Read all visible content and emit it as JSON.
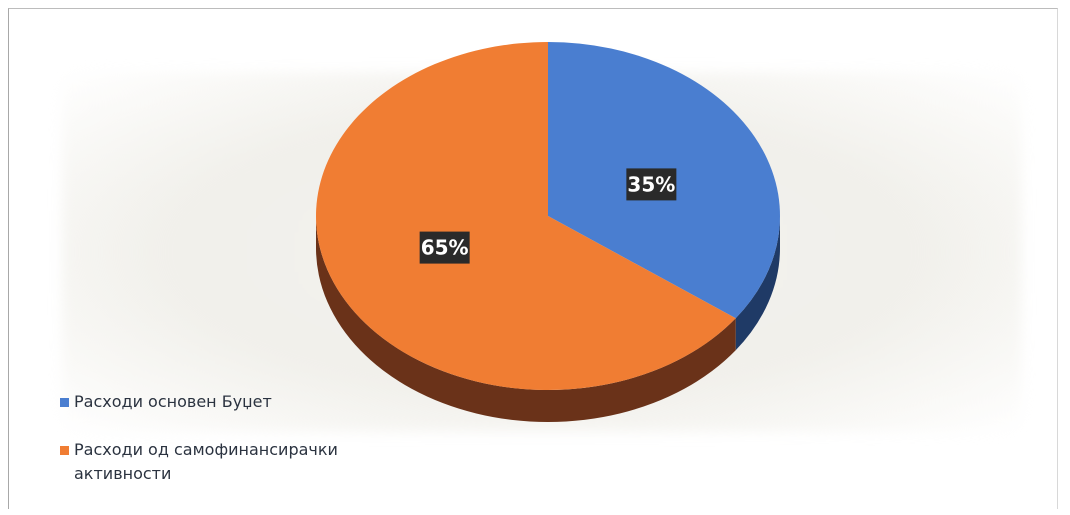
{
  "chart_data": {
    "type": "pie",
    "style": "3d",
    "slices": [
      {
        "label": "Расходи основен Буџет",
        "value": 35,
        "value_label": "35%",
        "color": "#4a7ed0"
      },
      {
        "label": "Расходи од самофинансирачки активности",
        "value": 65,
        "value_label": "65%",
        "color": "#f07d33"
      }
    ],
    "legend_position": "bottom-left"
  },
  "legend": {
    "items": [
      {
        "label": "Расходи основен Буџет",
        "color": "#4a7ed0"
      },
      {
        "label": "Расходи од самофинансирачки активности",
        "color": "#f07d33"
      }
    ]
  }
}
